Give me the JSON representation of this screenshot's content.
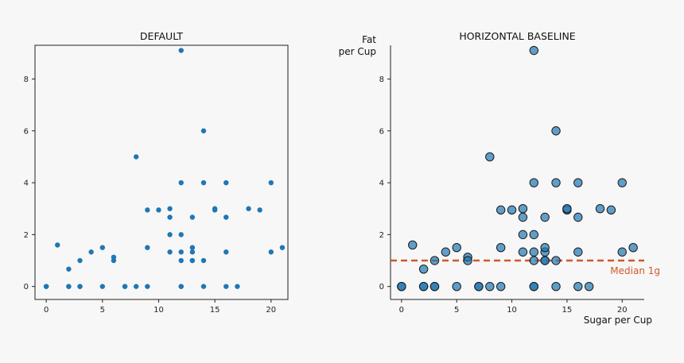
{
  "colors": {
    "background": "#f7f7f7",
    "point": "#1f77b4",
    "point_alpha_fill": "rgba(31,119,180,0.7)",
    "point_edge": "#1a1a1a",
    "median_line": "#d2582a",
    "axis": "#222222"
  },
  "chart_data": [
    {
      "type": "scatter",
      "title": "DEFAULT",
      "xlabel": "",
      "ylabel": "",
      "xlim": [
        -1,
        21.5
      ],
      "ylim": [
        -0.5,
        9.3
      ],
      "xticks": [
        0,
        5,
        10,
        15,
        20
      ],
      "yticks": [
        0,
        2,
        4,
        6,
        8
      ],
      "grid": false,
      "spines": "all",
      "x": [
        0,
        0,
        1,
        2,
        2,
        2,
        3,
        3,
        3,
        4,
        5,
        5,
        6,
        6,
        7,
        7,
        8,
        8,
        9,
        9,
        9,
        10,
        11,
        11,
        11,
        11,
        12,
        12,
        12,
        12,
        12,
        12,
        12,
        13,
        13,
        13,
        13,
        13,
        14,
        14,
        14,
        14,
        15,
        15,
        16,
        16,
        16,
        16,
        17,
        18,
        19,
        20,
        20,
        21
      ],
      "y": [
        0,
        0,
        1.6,
        0,
        0,
        0.67,
        0,
        0,
        1,
        1.33,
        1.5,
        0,
        1.13,
        1,
        0,
        0,
        5,
        0,
        0,
        2.95,
        1.5,
        2.95,
        2.67,
        3,
        2,
        1.33,
        9.1,
        4,
        2,
        1.33,
        1,
        0,
        0,
        1,
        2.67,
        1.33,
        1.5,
        1,
        6,
        4,
        1,
        0,
        2.95,
        3,
        4,
        2.67,
        1.33,
        0,
        0,
        3,
        2.95,
        4,
        1.33,
        1.5
      ]
    },
    {
      "type": "scatter",
      "title": "HORIZONTAL BASELINE",
      "xlabel": "Sugar per Cup",
      "ylabel_line1": "Fat",
      "ylabel_line2": "per Cup",
      "xlim": [
        -1,
        22
      ],
      "ylim": [
        -0.5,
        9.3
      ],
      "xticks": [
        0,
        5,
        10,
        15,
        20
      ],
      "yticks": [
        0,
        2,
        4,
        6,
        8
      ],
      "grid": false,
      "spines": "left-bottom",
      "baseline": {
        "y": 1,
        "label": "Median 1g",
        "style": "dashed"
      },
      "x": [
        0,
        0,
        1,
        2,
        2,
        2,
        3,
        3,
        3,
        4,
        5,
        5,
        6,
        6,
        7,
        7,
        8,
        8,
        9,
        9,
        9,
        10,
        11,
        11,
        11,
        11,
        12,
        12,
        12,
        12,
        12,
        12,
        12,
        13,
        13,
        13,
        13,
        13,
        14,
        14,
        14,
        14,
        15,
        15,
        16,
        16,
        16,
        16,
        17,
        18,
        19,
        20,
        20,
        21
      ],
      "y": [
        0,
        0,
        1.6,
        0,
        0,
        0.67,
        0,
        0,
        1,
        1.33,
        1.5,
        0,
        1.13,
        1,
        0,
        0,
        5,
        0,
        0,
        2.95,
        1.5,
        2.95,
        2.67,
        3,
        2,
        1.33,
        9.1,
        4,
        2,
        1.33,
        1,
        0,
        0,
        1,
        2.67,
        1.33,
        1.5,
        1,
        6,
        4,
        1,
        0,
        2.95,
        3,
        4,
        2.67,
        1.33,
        0,
        0,
        3,
        2.95,
        4,
        1.33,
        1.5
      ]
    }
  ]
}
